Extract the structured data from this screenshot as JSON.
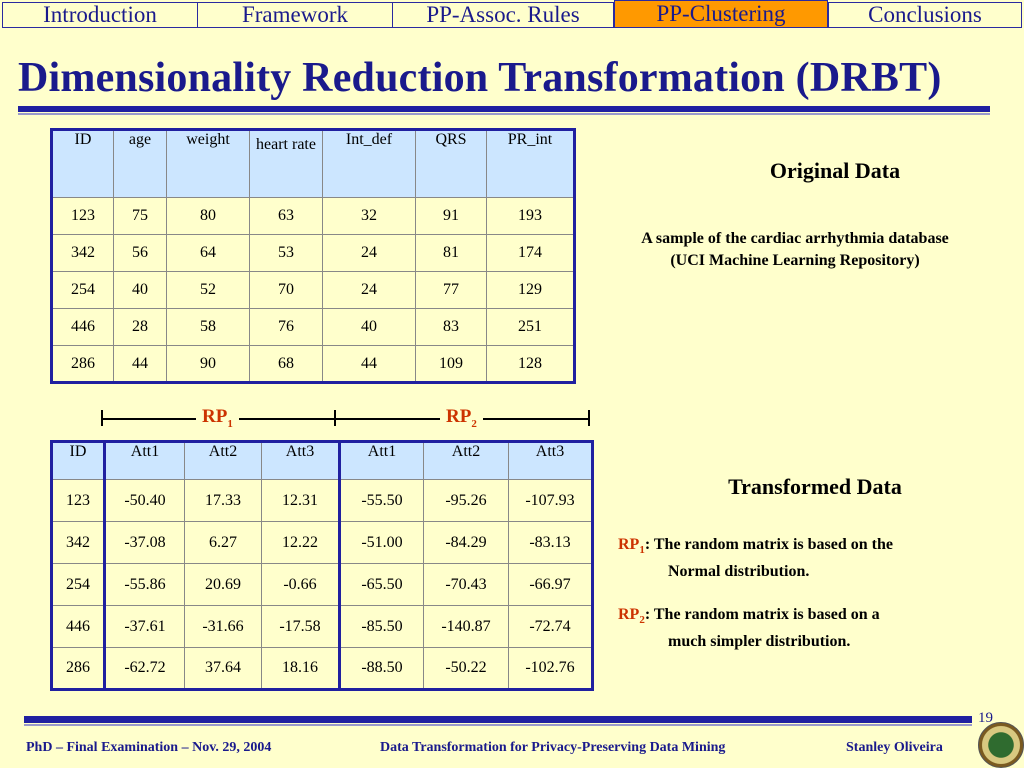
{
  "nav": {
    "tabs": [
      {
        "label": "Introduction"
      },
      {
        "label": "Framework"
      },
      {
        "label": "PP-Assoc. Rules"
      },
      {
        "label": "PP-Clustering",
        "active": true
      },
      {
        "label": "Conclusions"
      }
    ]
  },
  "title": "Dimensionality Reduction Transformation (DRBT)",
  "original": {
    "heading": "Original Data",
    "description_line1": "A sample of the cardiac arrhythmia database",
    "description_line2": "(UCI Machine Learning Repository)",
    "columns": [
      "ID",
      "age",
      "weight",
      "heart rate",
      "Int_def",
      "QRS",
      "PR_int"
    ],
    "rows": [
      [
        "123",
        "75",
        "80",
        "63",
        "32",
        "91",
        "193"
      ],
      [
        "342",
        "56",
        "64",
        "53",
        "24",
        "81",
        "174"
      ],
      [
        "254",
        "40",
        "52",
        "70",
        "24",
        "77",
        "129"
      ],
      [
        "446",
        "28",
        "58",
        "76",
        "40",
        "83",
        "251"
      ],
      [
        "286",
        "44",
        "90",
        "68",
        "44",
        "109",
        "128"
      ]
    ]
  },
  "transformed": {
    "heading": "Transformed Data",
    "rp1_label": "RP",
    "rp1_sub": "1",
    "rp2_label": "RP",
    "rp2_sub": "2",
    "columns": [
      "ID",
      "Att1",
      "Att2",
      "Att3",
      "Att1",
      "Att2",
      "Att3"
    ],
    "rows": [
      [
        "123",
        "-50.40",
        "17.33",
        "12.31",
        "-55.50",
        "-95.26",
        "-107.93"
      ],
      [
        "342",
        "-37.08",
        "6.27",
        "12.22",
        "-51.00",
        "-84.29",
        "-83.13"
      ],
      [
        "254",
        "-55.86",
        "20.69",
        "-0.66",
        "-65.50",
        "-70.43",
        "-66.97"
      ],
      [
        "446",
        "-37.61",
        "-31.66",
        "-17.58",
        "-85.50",
        "-140.87",
        "-72.74"
      ],
      [
        "286",
        "-62.72",
        "37.64",
        "18.16",
        "-88.50",
        "-50.22",
        "-102.76"
      ]
    ],
    "note1_text": ": The random matrix is based on the",
    "note1_cont": "Normal distribution.",
    "note2_text": ": The random matrix is based on a",
    "note2_cont": "much simpler distribution."
  },
  "footer": {
    "page": "19",
    "left": "PhD – Final Examination – Nov. 29, 2004",
    "center": "Data Transformation for Privacy-Preserving Data Mining",
    "right": "Stanley Oliveira"
  },
  "colors": {
    "accent": "#2020a0",
    "active_tab": "#ff9900",
    "rp": "#cc3300",
    "header_cell": "#cce6ff"
  },
  "icons": {
    "seal": "university-seal-icon"
  }
}
